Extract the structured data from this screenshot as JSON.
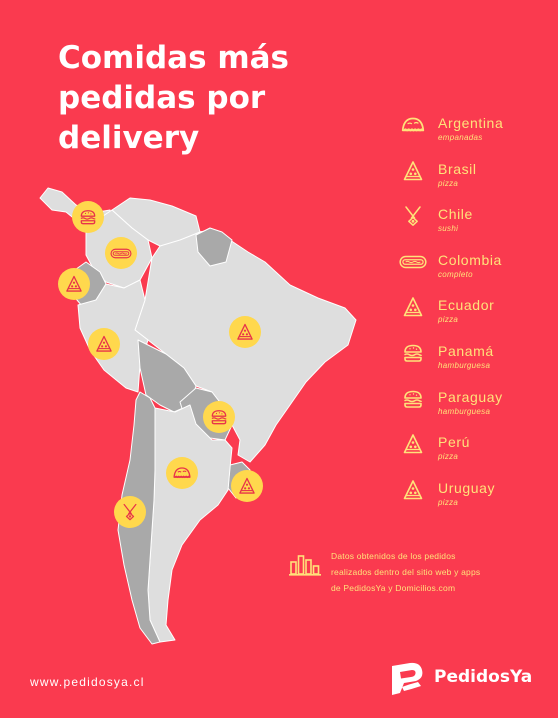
{
  "title": {
    "line1": "Comidas más",
    "line2": "pedidas por",
    "line3": "delivery"
  },
  "legend": [
    {
      "country": "Argentina",
      "food": "empanadas",
      "icon": "empanada-icon"
    },
    {
      "country": "Brasil",
      "food": "pizza",
      "icon": "pizza-icon"
    },
    {
      "country": "Chile",
      "food": "sushi",
      "icon": "sushi-icon"
    },
    {
      "country": "Colombia",
      "food": "completo",
      "icon": "hotdog-icon"
    },
    {
      "country": "Ecuador",
      "food": "pizza",
      "icon": "pizza-icon"
    },
    {
      "country": "Panamá",
      "food": "hamburguesa",
      "icon": "burger-icon"
    },
    {
      "country": "Paraguay",
      "food": "hamburguesa",
      "icon": "burger-icon"
    },
    {
      "country": "Perú",
      "food": "pizza",
      "icon": "pizza-icon"
    },
    {
      "country": "Uruguay",
      "food": "pizza",
      "icon": "pizza-icon"
    }
  ],
  "note": {
    "line1": "Datos obtenidos de los pedidos",
    "line2": "realizados dentro del sitio web y apps",
    "line3": "de PedidosYa y Domicilios.com"
  },
  "footer": {
    "url": "www.pedidosya.cl",
    "brand": "PedidosYa"
  },
  "colors": {
    "background": "#fa3a4f",
    "accent": "#ffe27a",
    "marker": "#ffd84d",
    "marker_icon": "#e8334a",
    "map_light": "#dedede",
    "map_dark": "#a9a9a9"
  }
}
